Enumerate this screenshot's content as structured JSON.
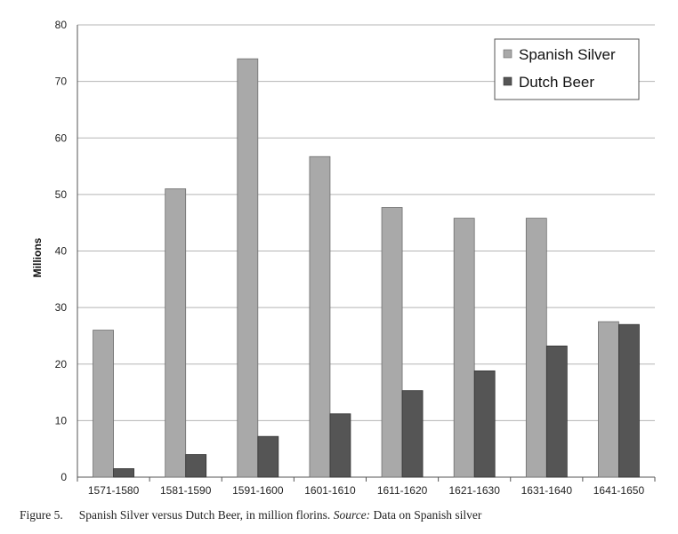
{
  "chart_data": {
    "type": "bar",
    "categories": [
      "1571-1580",
      "1581-1590",
      "1591-1600",
      "1601-1610",
      "1611-1620",
      "1621-1630",
      "1631-1640",
      "1641-1650"
    ],
    "series": [
      {
        "name": "Spanish Silver",
        "values": [
          26,
          51,
          74,
          56.7,
          47.7,
          45.8,
          45.8,
          27.5
        ],
        "color": "#a9a9a9"
      },
      {
        "name": "Dutch Beer",
        "values": [
          1.5,
          4,
          7.2,
          11.2,
          15.3,
          18.8,
          23.2,
          27
        ],
        "color": "#555555"
      }
    ],
    "ylabel": "Millions",
    "ylim": [
      0,
      80
    ],
    "yticks": [
      0,
      10,
      20,
      30,
      40,
      50,
      60,
      70,
      80
    ],
    "grid": true,
    "legend_position": "top-right"
  },
  "caption": {
    "figure_number": "Figure 5.",
    "text": "Spanish Silver versus Dutch Beer, in million florins.",
    "source_label": "Source:",
    "source_text": "Data on Spanish silver"
  }
}
